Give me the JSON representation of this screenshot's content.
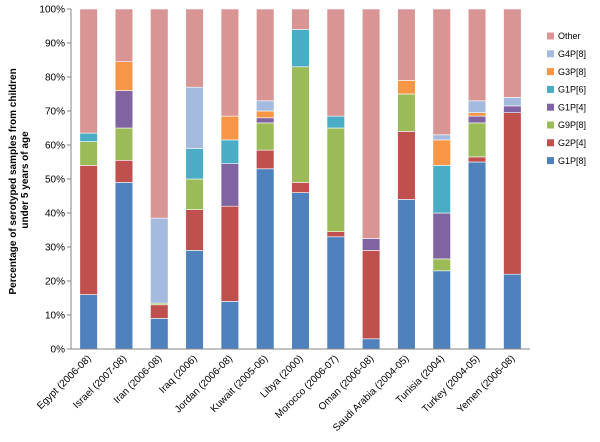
{
  "chart_data": {
    "type": "bar",
    "stacked": true,
    "title": "",
    "xlabel": "",
    "ylabel": "Percentage of serotyped samples from children under 5 years of age",
    "ylabel_lines": [
      "Percentage of serotyped samples from children",
      "under 5 years of age"
    ],
    "ylim": [
      0,
      100
    ],
    "y_ticks": [
      "0%",
      "10%",
      "20%",
      "30%",
      "40%",
      "50%",
      "60%",
      "70%",
      "80%",
      "90%",
      "100%"
    ],
    "categories": [
      "Egypt (2006-08)",
      "Israel (2007-08)",
      "Iran (2006-08)",
      "Iraq (2006)",
      "Jordan (2006-08)",
      "Kuwait (2005-06)",
      "Libya (2000)",
      "Morocco (2006-07)",
      "Oman (2006-08)",
      "Saudi Arabia (2004-05)",
      "Tunisia (2004)",
      "Turkey (2004-05)",
      "Yemen (2006-08)"
    ],
    "series": [
      {
        "name": "G1P[8]",
        "color": "#4f81bd",
        "values": [
          16,
          49,
          9,
          29,
          14,
          53,
          46,
          33,
          3,
          44,
          23,
          55,
          22
        ]
      },
      {
        "name": "G2P[4]",
        "color": "#c0504d",
        "values": [
          38,
          6.5,
          4,
          12,
          28,
          5.5,
          3,
          1.5,
          26,
          20,
          0,
          1.5,
          47.5
        ]
      },
      {
        "name": "G9P[8]",
        "color": "#9bbb59",
        "values": [
          7,
          9.5,
          0.5,
          9,
          0,
          8,
          34,
          30.5,
          0,
          11,
          3.5,
          10,
          0
        ]
      },
      {
        "name": "G1P[4]",
        "color": "#8064a2",
        "values": [
          0,
          11,
          0,
          0,
          12.5,
          1.5,
          0,
          0,
          3.5,
          0,
          13.5,
          2,
          2
        ]
      },
      {
        "name": "G1P[6]",
        "color": "#4bacc6",
        "values": [
          2.5,
          0,
          0,
          9,
          7,
          0,
          11,
          3.5,
          0,
          0,
          14,
          0,
          0
        ]
      },
      {
        "name": "G3P[8]",
        "color": "#f79646",
        "values": [
          0,
          8.5,
          0,
          0,
          7,
          2,
          0,
          0,
          0,
          4,
          7.5,
          1,
          0
        ]
      },
      {
        "name": "G4P[8]",
        "color": "#a4bbdf",
        "values": [
          0,
          0,
          25,
          18,
          0,
          3,
          0,
          0,
          0,
          0,
          1.5,
          3.5,
          2.5
        ]
      },
      {
        "name": "Other",
        "color": "#d99594",
        "values": [
          36.5,
          15.5,
          61.5,
          23,
          31.5,
          27,
          6,
          31.5,
          67.5,
          21,
          37,
          27,
          26
        ]
      }
    ],
    "legend": [
      "Other",
      "G4P[8]",
      "G3P[8]",
      "G1P[6]",
      "G1P[4]",
      "G9P[8]",
      "G2P[4]",
      "G1P[8]"
    ],
    "legend_position": "right",
    "grid": false
  }
}
